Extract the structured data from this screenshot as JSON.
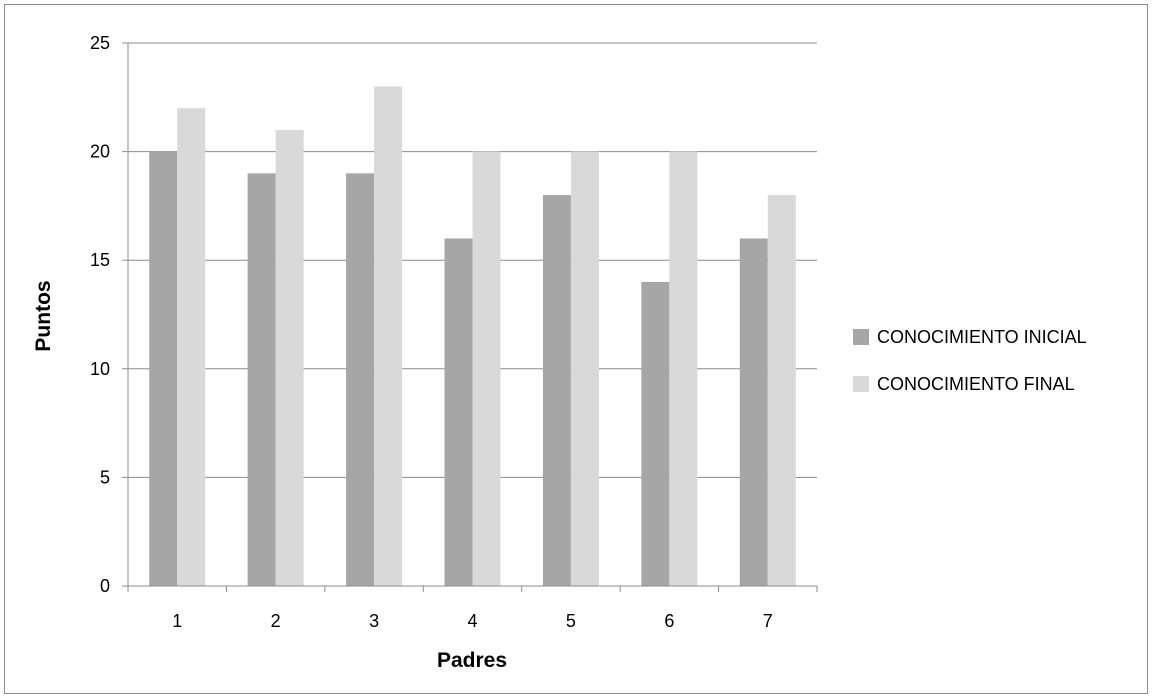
{
  "chart_data": {
    "type": "bar",
    "title": "",
    "xlabel": "Padres",
    "ylabel": "Puntos",
    "categories": [
      "1",
      "2",
      "3",
      "4",
      "5",
      "6",
      "7"
    ],
    "series": [
      {
        "name": "CONOCIMIENTO INICIAL",
        "color": "#a6a6a6",
        "values": [
          20,
          19,
          19,
          16,
          18,
          14,
          16
        ]
      },
      {
        "name": "CONOCIMIENTO FINAL",
        "color": "#d9d9d9",
        "values": [
          22,
          21,
          23,
          20,
          20,
          20,
          18
        ]
      }
    ],
    "ylim": [
      0,
      25
    ],
    "yticks": [
      0,
      5,
      10,
      15,
      20,
      25
    ],
    "grid": true,
    "legend_position": "right"
  }
}
